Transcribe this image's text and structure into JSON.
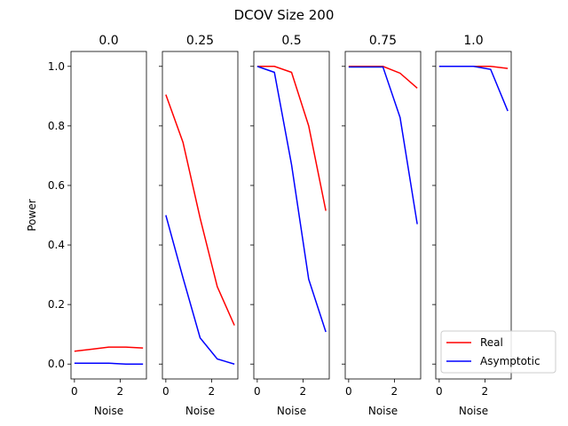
{
  "figure": {
    "suptitle": "DCOV Size 200"
  },
  "chart_data": {
    "type": "line",
    "title": "DCOV Size 200",
    "xlabel": "Noise",
    "ylabel": "Power",
    "xlim": [
      -0.15,
      3.15
    ],
    "ylim": [
      -0.05,
      1.05
    ],
    "xticks": [
      0,
      2
    ],
    "yticks": [
      0.0,
      0.2,
      0.4,
      0.6,
      0.8,
      1.0
    ],
    "ytick_labels": [
      "0.0",
      "0.2",
      "0.4",
      "0.6",
      "0.8",
      "1.0"
    ],
    "grid": false,
    "legend": {
      "placement": "lower-right",
      "entries": [
        "Real",
        "Asymptotic"
      ]
    },
    "series_colors": {
      "Real": "#ff0000",
      "Asymptotic": "#0000ff"
    },
    "panels": [
      {
        "title": "0.0",
        "x": [
          0,
          0.75,
          1.5,
          2.25,
          3.0
        ],
        "series": [
          {
            "name": "Real",
            "values": [
              0.043,
              0.05,
              0.057,
              0.057,
              0.054
            ]
          },
          {
            "name": "Asymptotic",
            "values": [
              0.003,
              0.003,
              0.003,
              0.0,
              0.0
            ]
          }
        ]
      },
      {
        "title": "0.25",
        "x": [
          0,
          0.75,
          1.5,
          2.25,
          3.0
        ],
        "series": [
          {
            "name": "Real",
            "values": [
              0.905,
              0.745,
              0.49,
              0.26,
              0.13
            ]
          },
          {
            "name": "Asymptotic",
            "values": [
              0.5,
              0.29,
              0.088,
              0.017,
              0.0
            ]
          }
        ]
      },
      {
        "title": "0.5",
        "x": [
          0,
          0.75,
          1.5,
          2.25,
          3.0
        ],
        "series": [
          {
            "name": "Real",
            "values": [
              1.0,
              1.0,
              0.98,
              0.8,
              0.515
            ]
          },
          {
            "name": "Asymptotic",
            "values": [
              1.0,
              0.98,
              0.67,
              0.285,
              0.108
            ]
          }
        ]
      },
      {
        "title": "0.75",
        "x": [
          0,
          0.75,
          1.5,
          2.25,
          3.0
        ],
        "series": [
          {
            "name": "Real",
            "values": [
              1.0,
              1.0,
              1.0,
              0.977,
              0.927
            ]
          },
          {
            "name": "Asymptotic",
            "values": [
              0.998,
              0.998,
              0.998,
              0.828,
              0.47
            ]
          }
        ]
      },
      {
        "title": "1.0",
        "x": [
          0,
          0.75,
          1.5,
          2.25,
          3.0
        ],
        "series": [
          {
            "name": "Real",
            "values": [
              1.0,
              1.0,
              1.0,
              1.0,
              0.993
            ]
          },
          {
            "name": "Asymptotic",
            "values": [
              1.0,
              1.0,
              1.0,
              0.99,
              0.85
            ]
          }
        ]
      }
    ]
  }
}
